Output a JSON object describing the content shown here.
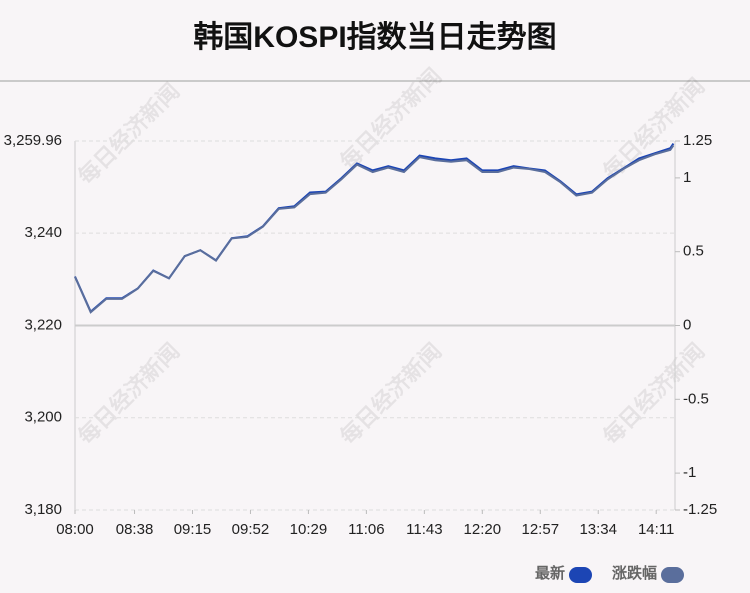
{
  "chart_data": {
    "type": "line",
    "title": "韩国KOSPI指数当日走势图",
    "watermark": "每日经济新闻",
    "x": [
      "08:00",
      "08:10",
      "08:20",
      "08:30",
      "08:40",
      "08:50",
      "09:00",
      "09:10",
      "09:20",
      "09:30",
      "09:40",
      "09:50",
      "10:00",
      "10:10",
      "10:20",
      "10:30",
      "10:40",
      "10:50",
      "11:00",
      "11:10",
      "11:20",
      "11:30",
      "11:40",
      "11:50",
      "12:00",
      "12:10",
      "12:20",
      "12:30",
      "12:40",
      "12:50",
      "13:00",
      "13:10",
      "13:20",
      "13:30",
      "13:40",
      "13:50",
      "14:00",
      "14:10",
      "14:20",
      "14:22"
    ],
    "xlim": [
      "08:00",
      "14:23"
    ],
    "xticks": [
      "08:00",
      "08:38",
      "09:15",
      "09:52",
      "10:29",
      "11:06",
      "11:43",
      "12:20",
      "12:57",
      "13:34",
      "14:11"
    ],
    "ylim": [
      3180,
      3259.96
    ],
    "yticks": [
      {
        "value": 3180,
        "label": "3,180"
      },
      {
        "value": 3200,
        "label": "3,200"
      },
      {
        "value": 3220,
        "label": "3,220"
      },
      {
        "value": 3240,
        "label": "3,240"
      },
      {
        "value": 3259.96,
        "label": "3,259.96"
      }
    ],
    "y2lim": [
      -1.25,
      1.25
    ],
    "y2ticks": [
      -1.25,
      -1,
      -0.5,
      0,
      0.5,
      1,
      1.25
    ],
    "grid": true,
    "series": [
      {
        "name": "最新",
        "color": "#1c45b4",
        "values": [
          3230.6,
          3223.0,
          3225.9,
          3225.9,
          3228.0,
          3231.9,
          3230.2,
          3235.0,
          3236.3,
          3234.1,
          3238.9,
          3239.3,
          3241.5,
          3245.4,
          3245.8,
          3248.8,
          3249.0,
          3251.9,
          3255.1,
          3253.6,
          3254.5,
          3253.6,
          3256.8,
          3256.2,
          3255.8,
          3256.2,
          3253.6,
          3253.6,
          3254.5,
          3254.0,
          3253.6,
          3251.2,
          3248.4,
          3249.0,
          3251.9,
          3254.0,
          3256.2,
          3257.3,
          3258.4,
          3259.4
        ]
      },
      {
        "name": "涨跌幅",
        "color": "#5a6e9c",
        "axis": "y2",
        "values": [
          0.33,
          0.09,
          0.18,
          0.18,
          0.25,
          0.37,
          0.32,
          0.47,
          0.51,
          0.44,
          0.59,
          0.6,
          0.67,
          0.79,
          0.8,
          0.89,
          0.9,
          0.99,
          1.09,
          1.04,
          1.07,
          1.04,
          1.14,
          1.12,
          1.11,
          1.12,
          1.04,
          1.04,
          1.07,
          1.06,
          1.04,
          0.97,
          0.88,
          0.9,
          0.99,
          1.06,
          1.12,
          1.16,
          1.19,
          1.22
        ]
      }
    ]
  }
}
